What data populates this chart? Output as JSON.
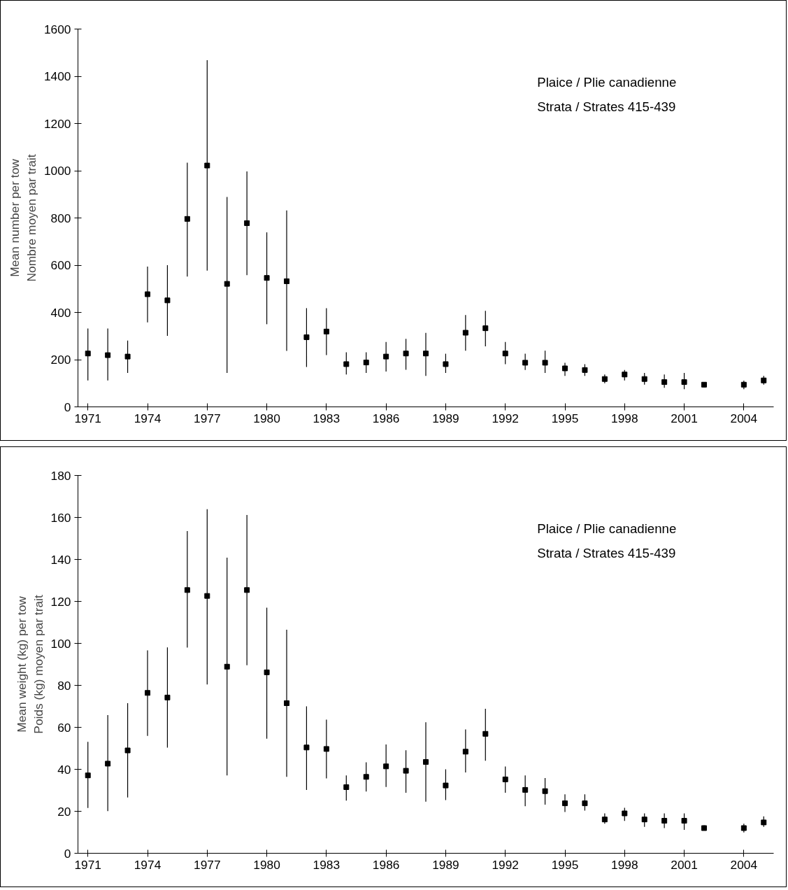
{
  "chart_data": [
    {
      "type": "scatter",
      "ylabel": "Mean number per tow\nNombre moyen par trait",
      "annotations": [
        "Plaice / Plie canadienne",
        "Strata /  Strates 415-439"
      ],
      "marker": "square",
      "grid": false,
      "x": [
        1971,
        1972,
        1973,
        1974,
        1975,
        1976,
        1977,
        1978,
        1979,
        1980,
        1981,
        1982,
        1983,
        1984,
        1985,
        1986,
        1987,
        1988,
        1989,
        1990,
        1991,
        1992,
        1993,
        1994,
        1995,
        1996,
        1997,
        1998,
        1999,
        2000,
        2001,
        2002,
        2003,
        2004,
        2005
      ],
      "xlim": [
        1970.5,
        2005.5
      ],
      "xticks": [
        1971,
        1974,
        1977,
        1980,
        1983,
        1986,
        1989,
        1992,
        1995,
        1998,
        2001,
        2004
      ],
      "ylim": [
        0,
        1600
      ],
      "yticks": [
        0,
        200,
        400,
        600,
        800,
        1000,
        1200,
        1400,
        1600
      ],
      "series": [
        {
          "color": "#000000",
          "values": [
            226,
            219,
            213,
            477,
            451,
            796,
            1022,
            521,
            778,
            546,
            532,
            295,
            319,
            181,
            188,
            213,
            226,
            226,
            181,
            314,
            333,
            226,
            187,
            187,
            163,
            156,
            118,
            137,
            118,
            105,
            105,
            94,
            null,
            94,
            112
          ],
          "errors": [
            [
              112,
              332
            ],
            [
              112,
              332
            ],
            [
              144,
              281
            ],
            [
              358,
              594
            ],
            [
              301,
              600
            ],
            [
              552,
              1034
            ],
            [
              577,
              1468
            ],
            [
              144,
              889
            ],
            [
              558,
              997
            ],
            [
              350,
              739
            ],
            [
              237,
              832
            ],
            [
              169,
              418
            ],
            [
              219,
              418
            ],
            [
              137,
              231
            ],
            [
              144,
              231
            ],
            [
              150,
              275
            ],
            [
              157,
              288
            ],
            [
              131,
              313
            ],
            [
              144,
              225
            ],
            [
              238,
              389
            ],
            [
              256,
              407
            ],
            [
              181,
              275
            ],
            [
              156,
              225
            ],
            [
              144,
              238
            ],
            [
              131,
              187
            ],
            [
              131,
              181
            ],
            [
              100,
              137
            ],
            [
              112,
              156
            ],
            [
              94,
              144
            ],
            [
              81,
              137
            ],
            [
              75,
              144
            ],
            [
              83,
              104
            ],
            null,
            [
              75,
              111
            ],
            [
              94,
              131
            ]
          ]
        }
      ]
    },
    {
      "type": "scatter",
      "ylabel": "Mean weight (kg) per tow\nPoids (kg) moyen par trait",
      "annotations": [
        "Plaice / Plie canadienne",
        "Strata /  Strates 415-439"
      ],
      "marker": "square",
      "grid": false,
      "x": [
        1971,
        1972,
        1973,
        1974,
        1975,
        1976,
        1977,
        1978,
        1979,
        1980,
        1981,
        1982,
        1983,
        1984,
        1985,
        1986,
        1987,
        1988,
        1989,
        1990,
        1991,
        1992,
        1993,
        1994,
        1995,
        1996,
        1997,
        1998,
        1999,
        2000,
        2001,
        2002,
        2003,
        2004,
        2005
      ],
      "xlim": [
        1970.5,
        2005.5
      ],
      "xticks": [
        1971,
        1974,
        1977,
        1980,
        1983,
        1986,
        1989,
        1992,
        1995,
        1998,
        2001,
        2004
      ],
      "ylim": [
        0,
        180
      ],
      "yticks": [
        0,
        20,
        40,
        60,
        80,
        100,
        120,
        140,
        160,
        180
      ],
      "series": [
        {
          "color": "#000000",
          "values": [
            37.1,
            42.7,
            49,
            76.4,
            74.2,
            125.4,
            122.6,
            88.9,
            125.4,
            86.2,
            71.5,
            50.4,
            49.7,
            31.5,
            36.4,
            41.4,
            39.3,
            43.5,
            32.3,
            48.4,
            56.9,
            35.2,
            30.2,
            29.6,
            23.8,
            23.8,
            16.1,
            19,
            16.1,
            15.5,
            15.5,
            12,
            null,
            12,
            14.7
          ],
          "errors": [
            [
              21.6,
              53.1
            ],
            [
              20.1,
              65.8
            ],
            [
              26.6,
              71.5
            ],
            [
              55.9,
              96.7
            ],
            [
              50.3,
              98.1
            ],
            [
              98,
              153.5
            ],
            [
              80.4,
              163.9
            ],
            [
              37.1,
              140.8
            ],
            [
              89.6,
              161.2
            ],
            [
              54.6,
              117
            ],
            [
              36.4,
              106.5
            ],
            [
              30.2,
              70
            ],
            [
              35.7,
              63.7
            ],
            [
              25.1,
              37.1
            ],
            [
              29.4,
              43.3
            ],
            [
              31.6,
              51.8
            ],
            [
              28.8,
              49.1
            ],
            [
              24.6,
              62.4
            ],
            [
              25.3,
              40
            ],
            [
              38.5,
              59
            ],
            [
              44.1,
              68.8
            ],
            [
              28.8,
              41.3
            ],
            [
              22.4,
              37.1
            ],
            [
              23.2,
              35.8
            ],
            [
              19.7,
              28.1
            ],
            [
              20.3,
              28.1
            ],
            [
              14.1,
              19
            ],
            [
              15.4,
              21.7
            ],
            [
              12.6,
              19
            ],
            [
              12,
              19
            ],
            [
              11.2,
              19
            ],
            [
              10.8,
              13.3
            ],
            null,
            [
              9.9,
              14.1
            ],
            [
              12.6,
              17.6
            ]
          ]
        }
      ]
    }
  ]
}
